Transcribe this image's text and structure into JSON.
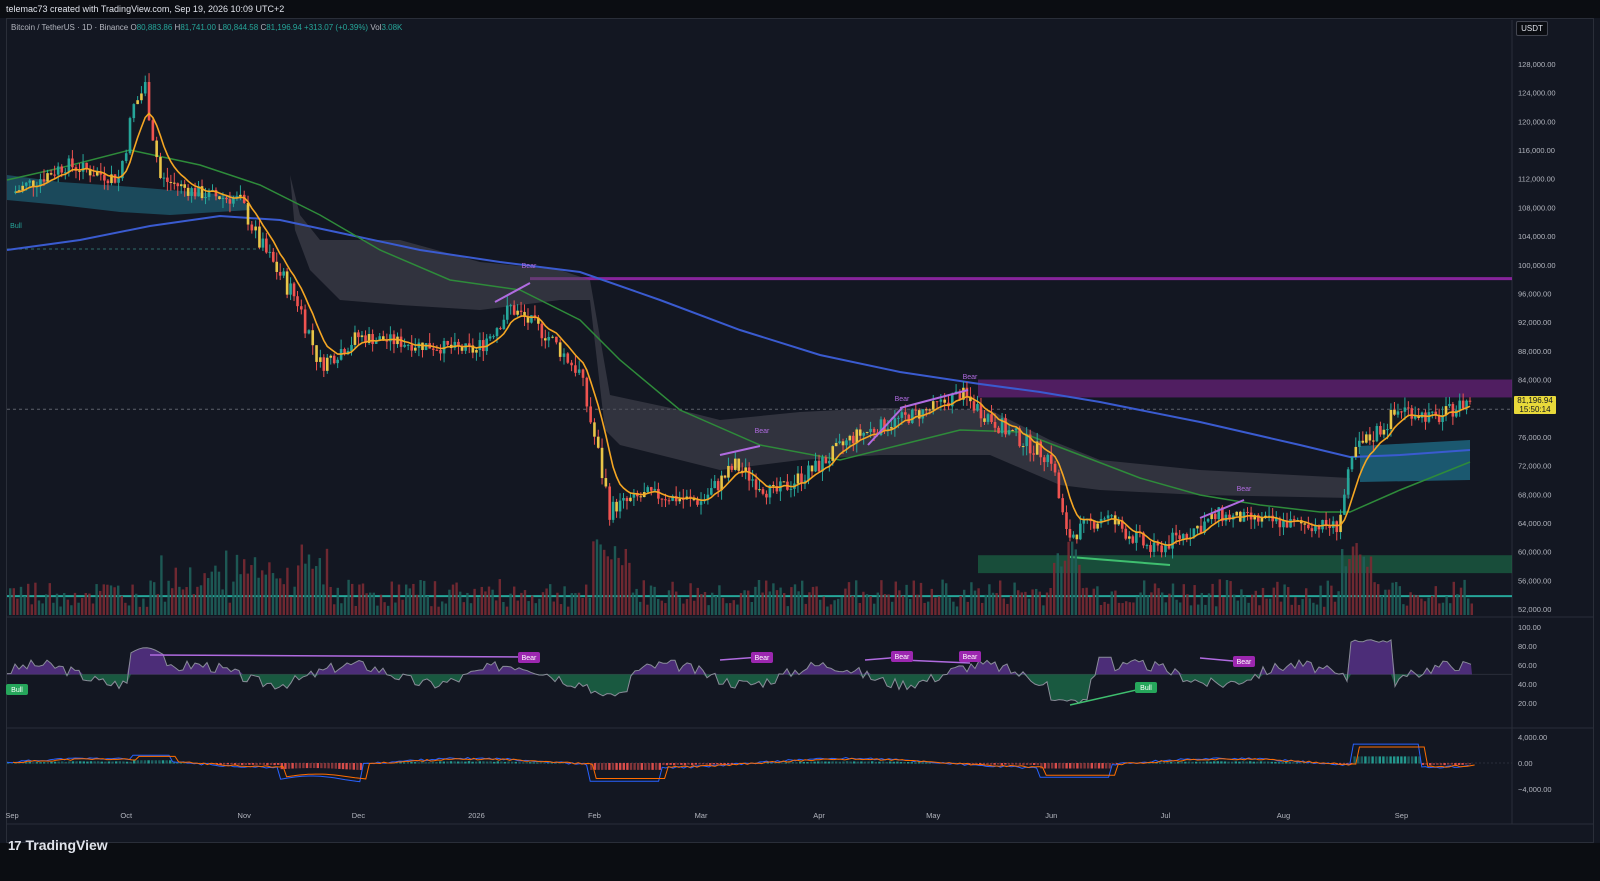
{
  "header": {
    "credit": "telemac73 created with TradingView.com, Sep 19, 2026 10:09 UTC+2"
  },
  "symbol": {
    "name": "Bitcoin / TetherUS · 1D · Binance",
    "open_label": "O",
    "open": "80,883.86",
    "high_label": "H",
    "high": "81,741.00",
    "low_label": "L",
    "low": "80,844.58",
    "close_label": "C",
    "close": "81,196.94",
    "change": "+313.07 (+0.39%)",
    "vol_label": "Vol",
    "vol": "3.08K"
  },
  "currency": "USDT",
  "last_price": {
    "price": "81,196.94",
    "countdown": "15:50:14"
  },
  "colors": {
    "background": "#131722",
    "up": "#26a69a",
    "down": "#ef5350",
    "ema_fast": "#f5a623",
    "ema_mid": "#2e8b3a",
    "ema_slow": "#3a5bd0",
    "cloud": "#4a4a55",
    "resistance": "#9c27b0",
    "support": "#1e7a4f",
    "price_tag": "#e8d93a",
    "rsi_bear": "#9c27b0",
    "rsi_bull": "#26a65b"
  },
  "brand": "TradingView",
  "chart_data": [
    {
      "type": "line",
      "title": "",
      "ylabel": "",
      "series_note": "BTCUSDT daily close (approx.)",
      "y_ticks": [
        "128,000.00",
        "124,000.00",
        "120,000.00",
        "116,000.00",
        "112,000.00",
        "108,000.00",
        "104,000.00",
        "100,000.00",
        "96,000.00",
        "92,000.00",
        "88,000.00",
        "84,000.00",
        "80,000.00",
        "76,000.00",
        "72,000.00",
        "68,000.00",
        "64,000.00",
        "60,000.00",
        "56,000.00",
        "52,000.00"
      ],
      "y_tick_values": [
        128000,
        124000,
        120000,
        116000,
        112000,
        108000,
        104000,
        100000,
        96000,
        92000,
        88000,
        84000,
        80000,
        76000,
        72000,
        68000,
        64000,
        60000,
        56000,
        52000
      ],
      "ylim": [
        51000,
        130000
      ],
      "x_labels": [
        "Sep",
        "Oct",
        "Nov",
        "Dec",
        "2026",
        "Feb",
        "Mar",
        "Apr",
        "May",
        "Jun",
        "Jul",
        "Aug",
        "Sep"
      ],
      "x": [
        "2025-09-01",
        "2025-09-15",
        "2025-09-29",
        "2025-10-03",
        "2025-10-06",
        "2025-10-10",
        "2025-10-20",
        "2025-10-31",
        "2025-11-05",
        "2025-11-15",
        "2025-11-21",
        "2025-12-01",
        "2025-12-15",
        "2026-01-01",
        "2026-01-10",
        "2026-01-20",
        "2026-01-28",
        "2026-02-01",
        "2026-02-05",
        "2026-02-15",
        "2026-03-01",
        "2026-03-10",
        "2026-03-20",
        "2026-04-01",
        "2026-04-10",
        "2026-04-20",
        "2026-05-01",
        "2026-05-08",
        "2026-05-20",
        "2026-06-01",
        "2026-06-05",
        "2026-06-15",
        "2026-06-28",
        "2026-07-01",
        "2026-07-15",
        "2026-08-01",
        "2026-08-15",
        "2026-08-20",
        "2026-09-01",
        "2026-09-10",
        "2026-09-19"
      ],
      "close": [
        110000,
        114000,
        112000,
        122000,
        125000,
        112000,
        110000,
        109000,
        103000,
        95000,
        86000,
        90000,
        89000,
        88000,
        94000,
        90000,
        85000,
        76000,
        66000,
        68000,
        67000,
        72000,
        68000,
        72000,
        76000,
        78000,
        80000,
        82000,
        77000,
        73000,
        62000,
        65000,
        60000,
        61000,
        65000,
        64000,
        63500,
        74000,
        80000,
        78500,
        81197
      ],
      "levels": {
        "resistance_top": 98000,
        "resistance_band": [
          81500,
          84000
        ],
        "support_band": [
          57000,
          59500
        ],
        "support_line": 53800
      },
      "annotations": [
        "Bull",
        "Bear",
        "Bear",
        "Bear",
        "Bear",
        "Bear"
      ]
    },
    {
      "type": "area",
      "title": "",
      "y_ticks": [
        "100.00",
        "80.00",
        "60.00",
        "40.00",
        "20.00"
      ],
      "y_tick_values": [
        100,
        80,
        60,
        40,
        20
      ],
      "ylim": [
        0,
        105
      ],
      "midline": 50,
      "labels": [
        "Bull",
        "Bear",
        "Bear",
        "Bear",
        "Bear",
        "Bull",
        "Bear"
      ]
    },
    {
      "type": "bar",
      "title": "",
      "y_ticks": [
        "4,000.00",
        "0.00",
        "−4,000.00"
      ],
      "y_tick_values": [
        4000,
        0,
        -4000
      ],
      "ylim": [
        -6000,
        6000
      ]
    }
  ]
}
